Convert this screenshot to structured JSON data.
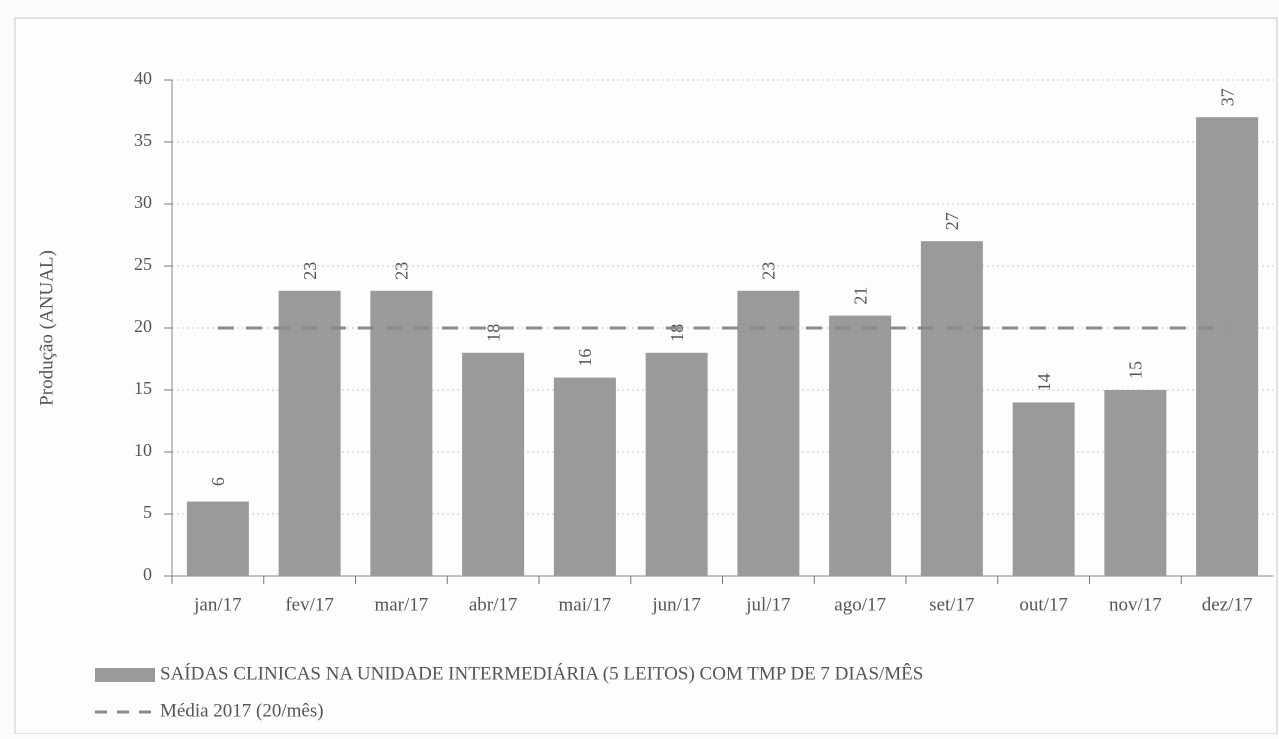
{
  "chart_data": {
    "type": "bar",
    "ylabel": "Produção (ANUAL)",
    "categories": [
      "jan/17",
      "fev/17",
      "mar/17",
      "abr/17",
      "mai/17",
      "jun/17",
      "jul/17",
      "ago/17",
      "set/17",
      "out/17",
      "nov/17",
      "dez/17"
    ],
    "series": [
      {
        "name": "SAÍDAS CLINICAS NA UNIDADE INTERMEDIÁRIA (5 LEITOS) COM TMP DE 7 DIAS/MÊS",
        "type": "bar",
        "color": "#9a9a9a",
        "values": [
          6,
          23,
          23,
          18,
          16,
          18,
          23,
          21,
          27,
          14,
          15,
          37
        ]
      },
      {
        "name": "Média 2017 (20/mês)",
        "type": "line",
        "color": "#8a8a8a",
        "dashed": true,
        "values": [
          20,
          20,
          20,
          20,
          20,
          20,
          20,
          20,
          20,
          20,
          20,
          20
        ]
      }
    ],
    "ylim": [
      0,
      40
    ],
    "yticks": [
      0,
      5,
      10,
      15,
      20,
      25,
      30,
      35,
      40
    ],
    "grid": true,
    "legend": "bottom-left"
  }
}
